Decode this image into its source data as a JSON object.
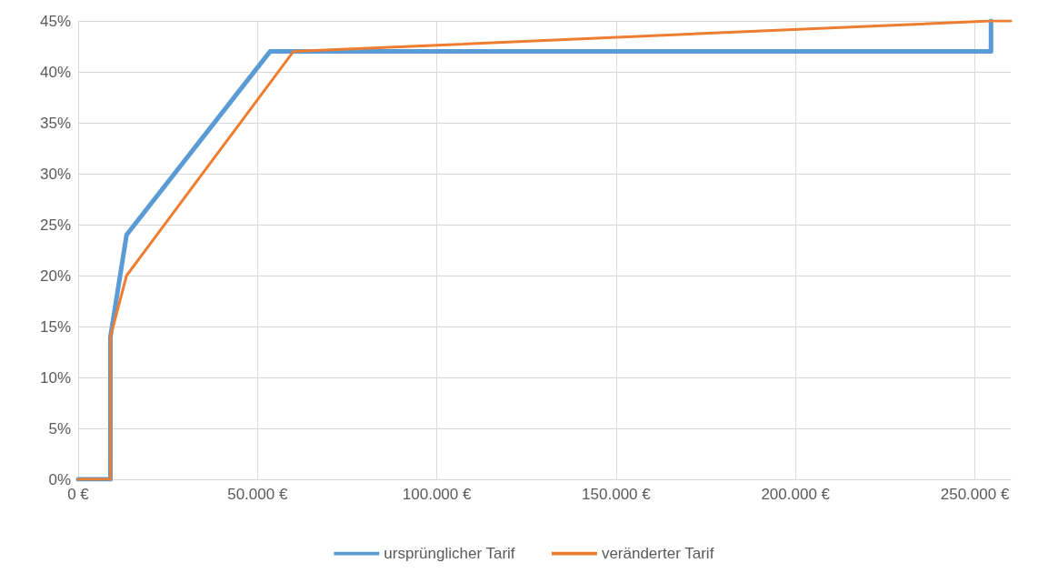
{
  "chart_data": {
    "type": "line",
    "series": [
      {
        "name": "ursprünglicher Tarif",
        "color": "#5b9bd5",
        "x": [
          0,
          9000,
          9000,
          13500,
          53500,
          254500,
          254500
        ],
        "values": [
          0,
          0,
          14,
          24,
          42,
          42,
          45
        ]
      },
      {
        "name": "veränderter Tarif",
        "color": "#ed7d31",
        "x": [
          0,
          9000,
          9000,
          13500,
          60000,
          254500,
          260000
        ],
        "values": [
          0,
          0,
          14,
          20,
          42,
          45,
          45
        ]
      }
    ],
    "xlim": [
      0,
      260000
    ],
    "xticks": [
      {
        "value": 0,
        "label": "0 €"
      },
      {
        "value": 50000,
        "label": "50.000 €"
      },
      {
        "value": 100000,
        "label": "100.000 €"
      },
      {
        "value": 150000,
        "label": "150.000 €"
      },
      {
        "value": 200000,
        "label": "200.000 €"
      },
      {
        "value": 250000,
        "label": "250.000 €"
      }
    ],
    "ylim": [
      0,
      45
    ],
    "yticks": [
      {
        "value": 0,
        "label": "0%"
      },
      {
        "value": 5,
        "label": "5%"
      },
      {
        "value": 10,
        "label": "10%"
      },
      {
        "value": 15,
        "label": "15%"
      },
      {
        "value": 20,
        "label": "20%"
      },
      {
        "value": 25,
        "label": "25%"
      },
      {
        "value": 30,
        "label": "30%"
      },
      {
        "value": 35,
        "label": "35%"
      },
      {
        "value": 40,
        "label": "40%"
      },
      {
        "value": 45,
        "label": "45%"
      }
    ],
    "grid": true,
    "legend": "bottom",
    "marker": "none",
    "line_style": "solid"
  }
}
